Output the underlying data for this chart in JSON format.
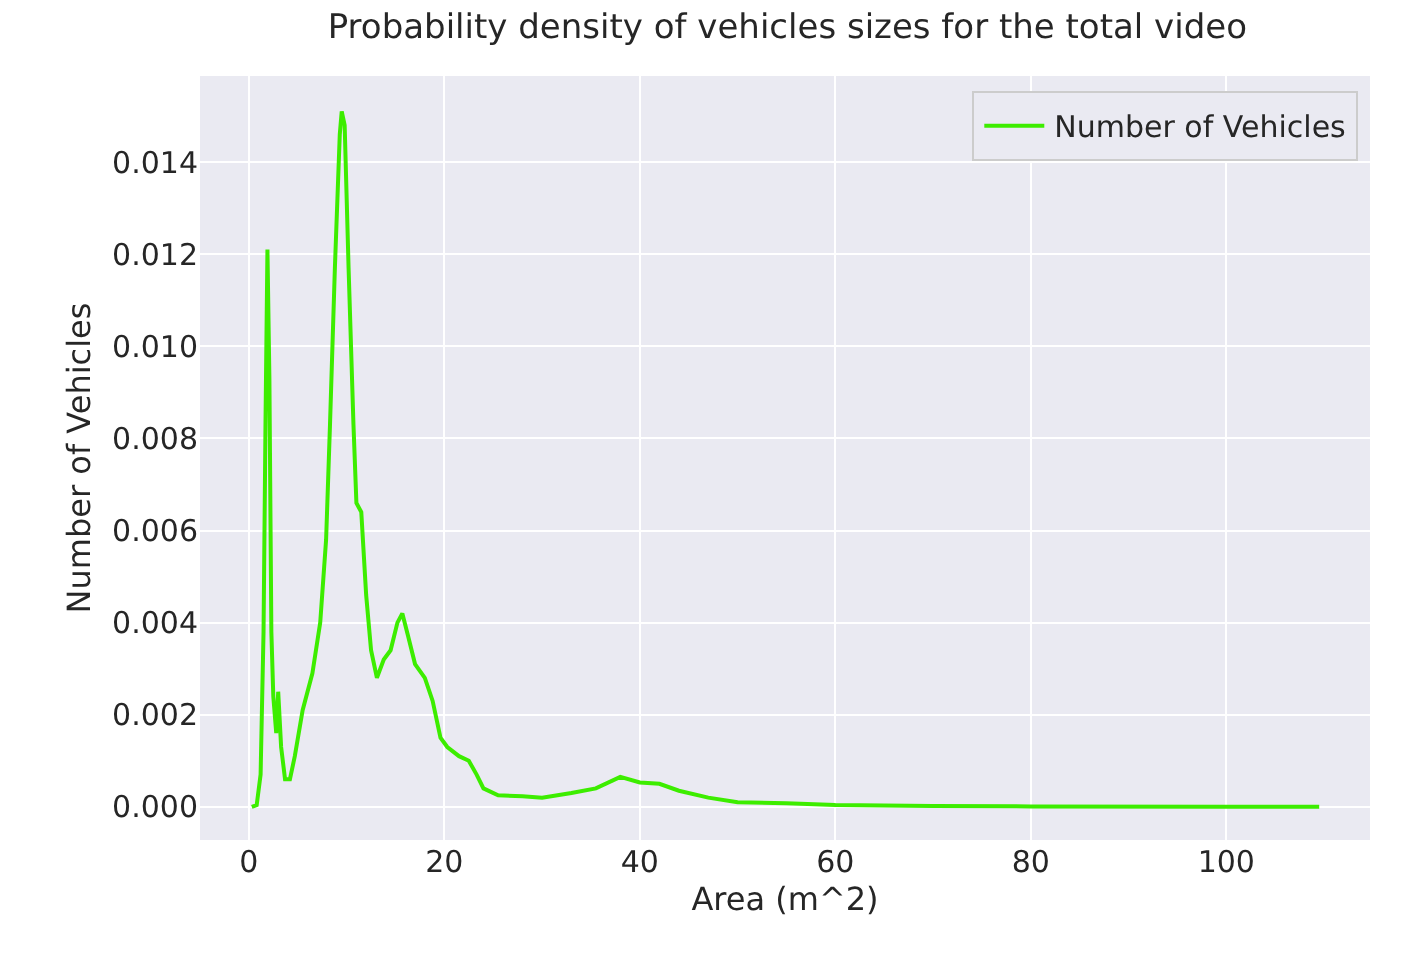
{
  "chart_data": {
    "type": "line",
    "title": "Probability density of vehicles sizes for the total video",
    "xlabel": "Area (m^2)",
    "ylabel": "Number of Vehicles",
    "x": [
      0.3,
      0.8,
      1.2,
      1.5,
      1.7,
      1.9,
      2.1,
      2.3,
      2.5,
      2.8,
      3.0,
      3.3,
      3.7,
      4.2,
      4.7,
      5.5,
      6.5,
      7.3,
      7.9,
      8.3,
      8.8,
      9.3,
      9.5,
      9.8,
      10.2,
      10.7,
      11.0,
      11.5,
      12.0,
      12.5,
      13.1,
      13.8,
      14.5,
      15.2,
      15.7,
      16.3,
      17.0,
      18.0,
      18.8,
      19.6,
      20.3,
      21.5,
      22.5,
      23.3,
      24.0,
      25.5,
      28,
      30,
      33,
      35.5,
      38,
      40,
      42,
      44,
      47,
      50,
      55,
      60,
      70,
      80,
      100,
      109.5
    ],
    "series": [
      {
        "name": "Number of Vehicles",
        "color": "#3ded00",
        "values": [
          0,
          4e-05,
          0.0007,
          0.0038,
          0.0083,
          0.0121,
          0.0093,
          0.0038,
          0.0024,
          0.0016,
          0.0025,
          0.0013,
          0.0006,
          0.0006,
          0.0011,
          0.0021,
          0.0029,
          0.004,
          0.0058,
          0.0083,
          0.0117,
          0.0146,
          0.0151,
          0.0148,
          0.0117,
          0.0083,
          0.0066,
          0.0064,
          0.0046,
          0.0034,
          0.0028,
          0.0032,
          0.0034,
          0.004,
          0.0042,
          0.0037,
          0.0031,
          0.0028,
          0.0023,
          0.0015,
          0.0013,
          0.0011,
          0.001,
          0.0007,
          0.0004,
          0.00025,
          0.00023,
          0.0002,
          0.0003,
          0.0004,
          0.00065,
          0.00053,
          0.0005,
          0.00035,
          0.0002,
          0.0001,
          8e-05,
          4e-05,
          2e-05,
          1e-05,
          0,
          0
        ]
      }
    ],
    "xlim": [
      -5,
      114.7
    ],
    "ylim": [
      -0.00072,
      0.01587
    ],
    "xticks": [
      0,
      20,
      40,
      60,
      80,
      100
    ],
    "yticks": [
      {
        "value": 0,
        "label": "0.000"
      },
      {
        "value": 0.002,
        "label": "0.002"
      },
      {
        "value": 0.004,
        "label": "0.004"
      },
      {
        "value": 0.006,
        "label": "0.006"
      },
      {
        "value": 0.008,
        "label": "0.008"
      },
      {
        "value": 0.01,
        "label": "0.010"
      },
      {
        "value": 0.012,
        "label": "0.012"
      },
      {
        "value": 0.014,
        "label": "0.014"
      }
    ],
    "grid": true,
    "legend": "top right",
    "line_style": "solid"
  }
}
